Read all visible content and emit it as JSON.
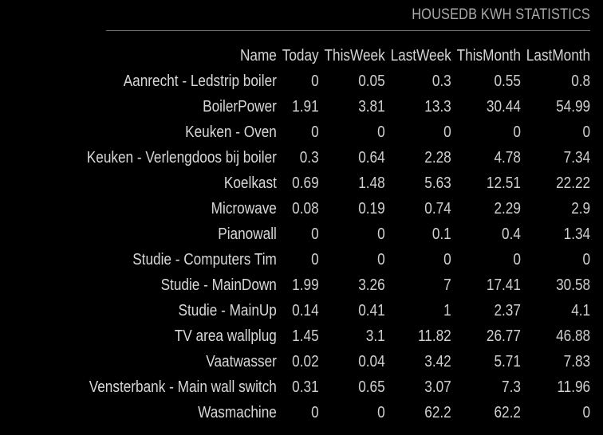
{
  "module": {
    "title": "HOUSEDB KWH STATISTICS"
  },
  "table": {
    "headers": [
      "Name",
      "Today",
      "ThisWeek",
      "LastWeek",
      "ThisMonth",
      "LastMonth"
    ],
    "rows": [
      [
        "Aanrecht - Ledstrip boiler",
        "0",
        "0.05",
        "0.3",
        "0.55",
        "0.8"
      ],
      [
        "BoilerPower",
        "1.91",
        "3.81",
        "13.3",
        "30.44",
        "54.99"
      ],
      [
        "Keuken - Oven",
        "0",
        "0",
        "0",
        "0",
        "0"
      ],
      [
        "Keuken - Verlengdoos bij boiler",
        "0.3",
        "0.64",
        "2.28",
        "4.78",
        "7.34"
      ],
      [
        "Koelkast",
        "0.69",
        "1.48",
        "5.63",
        "12.51",
        "22.22"
      ],
      [
        "Microwave",
        "0.08",
        "0.19",
        "0.74",
        "2.29",
        "2.9"
      ],
      [
        "Pianowall",
        "0",
        "0",
        "0.1",
        "0.4",
        "1.34"
      ],
      [
        "Studie - Computers Tim",
        "0",
        "0",
        "0",
        "0",
        "0"
      ],
      [
        "Studie - MainDown",
        "1.99",
        "3.26",
        "7",
        "17.41",
        "30.58"
      ],
      [
        "Studie - MainUp",
        "0.14",
        "0.41",
        "1",
        "2.37",
        "4.1"
      ],
      [
        "TV area wallplug",
        "1.45",
        "3.1",
        "11.82",
        "26.77",
        "46.88"
      ],
      [
        "Vaatwasser",
        "0.02",
        "0.04",
        "3.42",
        "5.71",
        "7.83"
      ],
      [
        "Vensterbank - Main wall switch",
        "0.31",
        "0.65",
        "3.07",
        "7.3",
        "11.96"
      ],
      [
        "Wasmachine",
        "0",
        "0",
        "62.2",
        "62.2",
        "0"
      ]
    ]
  },
  "colors": {
    "background": "#000000",
    "header_text": "#aaaaaa",
    "divider": "#777777",
    "cell_text": "#d0d0d0"
  }
}
